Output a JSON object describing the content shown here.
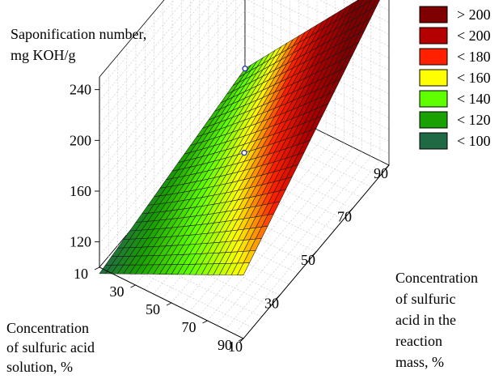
{
  "chart_data": {
    "type": "surface3d",
    "title": "",
    "zlabel_lines": [
      "Saponification number,",
      "mg KOH/g"
    ],
    "xlabel_lines": [
      "Concentration",
      "of sulfuric acid",
      "solution, %"
    ],
    "ylabel_lines": [
      "Concentration",
      "of sulfuric",
      "acid in the",
      "reaction",
      "mass, %"
    ],
    "x_ticks": [
      "10",
      "30",
      "50",
      "70",
      "90"
    ],
    "y_ticks": [
      "10",
      "30",
      "50",
      "70",
      "90"
    ],
    "z_ticks": [
      "120",
      "160",
      "200",
      "240"
    ],
    "xlim": [
      10,
      90
    ],
    "ylim": [
      10,
      90
    ],
    "zlim": [
      100,
      250
    ],
    "surface_corners": [
      {
        "x": 10,
        "y": 10,
        "z": 95
      },
      {
        "x": 90,
        "y": 10,
        "z": 120
      },
      {
        "x": 10,
        "y": 90,
        "z": 150
      },
      {
        "x": 90,
        "y": 90,
        "z": 245
      }
    ],
    "points": [
      {
        "x": 90,
        "y": 10,
        "z": 120
      },
      {
        "x": 50,
        "y": 50,
        "z": 150
      },
      {
        "x": 90,
        "y": 90,
        "z": 240
      }
    ],
    "legend": {
      "position": "top-right",
      "items": [
        {
          "label": "> 200",
          "color": "#7f0000"
        },
        {
          "label": "< 200",
          "color": "#b40000"
        },
        {
          "label": "< 180",
          "color": "#ff2000"
        },
        {
          "label": "< 160",
          "color": "#ffff00"
        },
        {
          "label": "< 140",
          "color": "#60ff00"
        },
        {
          "label": "< 120",
          "color": "#1aa000"
        },
        {
          "label": "< 100",
          "color": "#1f6a44"
        }
      ]
    },
    "grid": true
  }
}
